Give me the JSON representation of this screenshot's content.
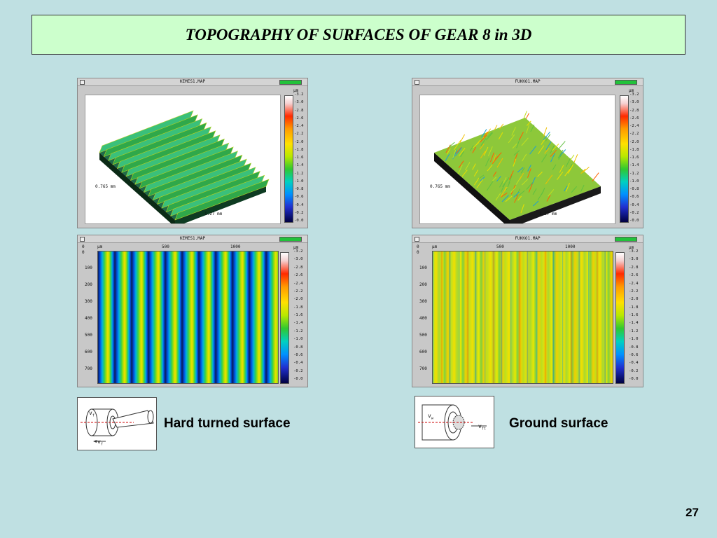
{
  "title": "TOPOGRAPHY OF SURFACES OF GEAR 8 in 3D",
  "panels": {
    "left_top": {
      "window_title": "KEMES1.MAP",
      "dim_y": "0.765 mm",
      "dim_x": "1.27 mm",
      "unit": "µm",
      "scale": [
        "3.2",
        "3.0",
        "2.8",
        "2.6",
        "2.4",
        "2.2",
        "2.0",
        "1.8",
        "1.6",
        "1.4",
        "1.2",
        "1.0",
        "0.8",
        "0.6",
        "0.4",
        "0.2",
        "0.0"
      ]
    },
    "right_top": {
      "window_title": "FUKKO1.MAP",
      "dim_y": "0.765 mm",
      "dim_x": "1.27 mm",
      "unit": "µm",
      "scale": [
        "3.2",
        "3.0",
        "2.8",
        "2.6",
        "2.4",
        "2.2",
        "2.0",
        "1.8",
        "1.6",
        "1.4",
        "1.2",
        "1.0",
        "0.8",
        "0.6",
        "0.4",
        "0.2",
        "0.0"
      ]
    },
    "left_bottom": {
      "window_title": "KEMES1.MAP",
      "x_ticks": [
        "0",
        "µm",
        "500",
        "1000"
      ],
      "y_ticks": [
        "0",
        "100",
        "200",
        "300",
        "400",
        "500",
        "600",
        "700"
      ],
      "unit": "µm",
      "scale": [
        "3.2",
        "3.0",
        "2.8",
        "2.6",
        "2.4",
        "2.2",
        "2.0",
        "1.8",
        "1.6",
        "1.4",
        "1.2",
        "1.0",
        "0.8",
        "0.6",
        "0.4",
        "0.2",
        "0.0"
      ]
    },
    "right_bottom": {
      "window_title": "FUKKO1.MAP",
      "x_ticks": [
        "0",
        "µm",
        "500",
        "1000"
      ],
      "y_ticks": [
        "0",
        "100",
        "200",
        "300",
        "400",
        "500",
        "600",
        "700"
      ],
      "unit": "µm",
      "scale": [
        "3.2",
        "3.0",
        "2.8",
        "2.6",
        "2.4",
        "2.2",
        "2.0",
        "1.8",
        "1.6",
        "1.4",
        "1.2",
        "1.0",
        "0.8",
        "0.6",
        "0.4",
        "0.2",
        "0.0"
      ]
    }
  },
  "sketch_left": {
    "label_top": "v",
    "label_top_sub": "f",
    "label_bottom": "v",
    "label_bottom_sub": "f"
  },
  "sketch_right": {
    "label_w": "v",
    "label_w_sub": "w",
    "label_ft": "v",
    "label_ft_sub": "ft"
  },
  "captions": {
    "left": "Hard turned surface",
    "right": "Ground surface"
  },
  "page_number": "27"
}
